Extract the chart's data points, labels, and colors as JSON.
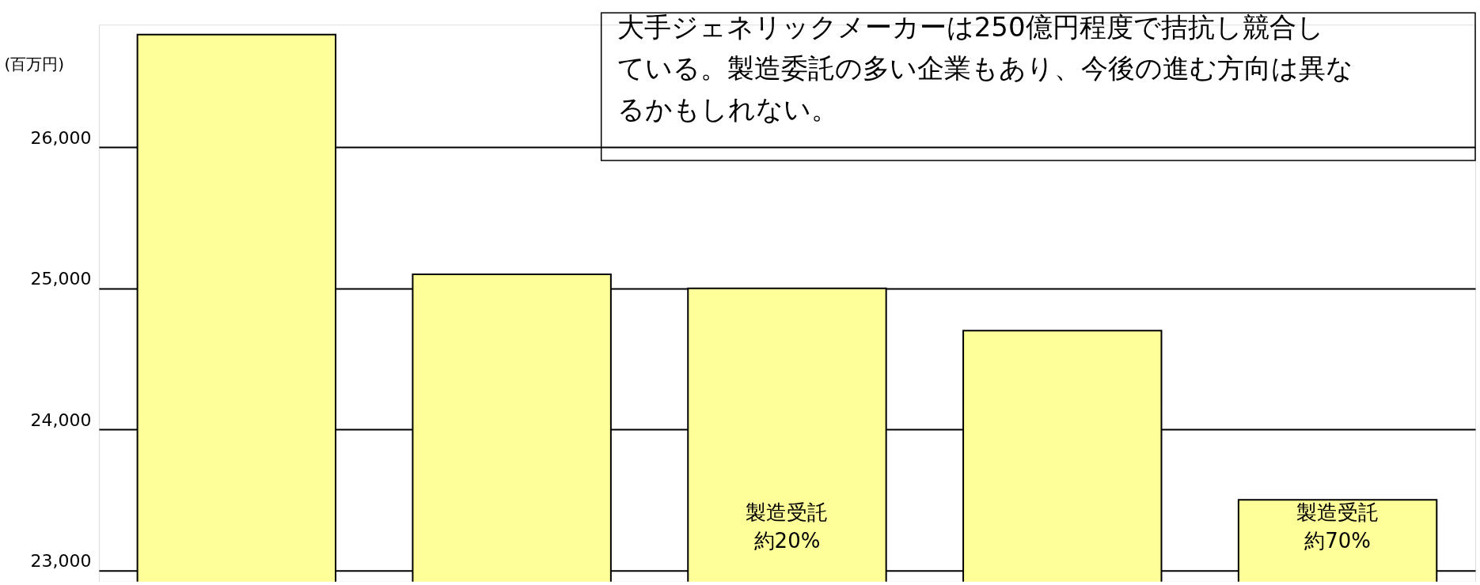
{
  "chart_data": {
    "type": "bar",
    "ylabel": "(百万円)",
    "categories": [
      null,
      null,
      null,
      null,
      null
    ],
    "values": [
      26800,
      25100,
      25000,
      24700,
      23500
    ],
    "value_labels": [
      null,
      null,
      "製造受託約20%",
      null,
      "製造受託約70%"
    ],
    "color": "#ffff99",
    "ylim": [
      22920,
      26870
    ],
    "yticks": [
      {
        "value": 23000,
        "label": "23,000"
      },
      {
        "value": 24000,
        "label": "24,000"
      },
      {
        "value": 25000,
        "label": "25,000"
      },
      {
        "value": 26000,
        "label": "26,000"
      }
    ],
    "grid": "y",
    "annotations": [
      "大手ジェネリックメーカーは250億円程度で拮抗し競合している。製造委託の多い企業もあり、今後の進む方向は異なるかもしれない。"
    ]
  }
}
